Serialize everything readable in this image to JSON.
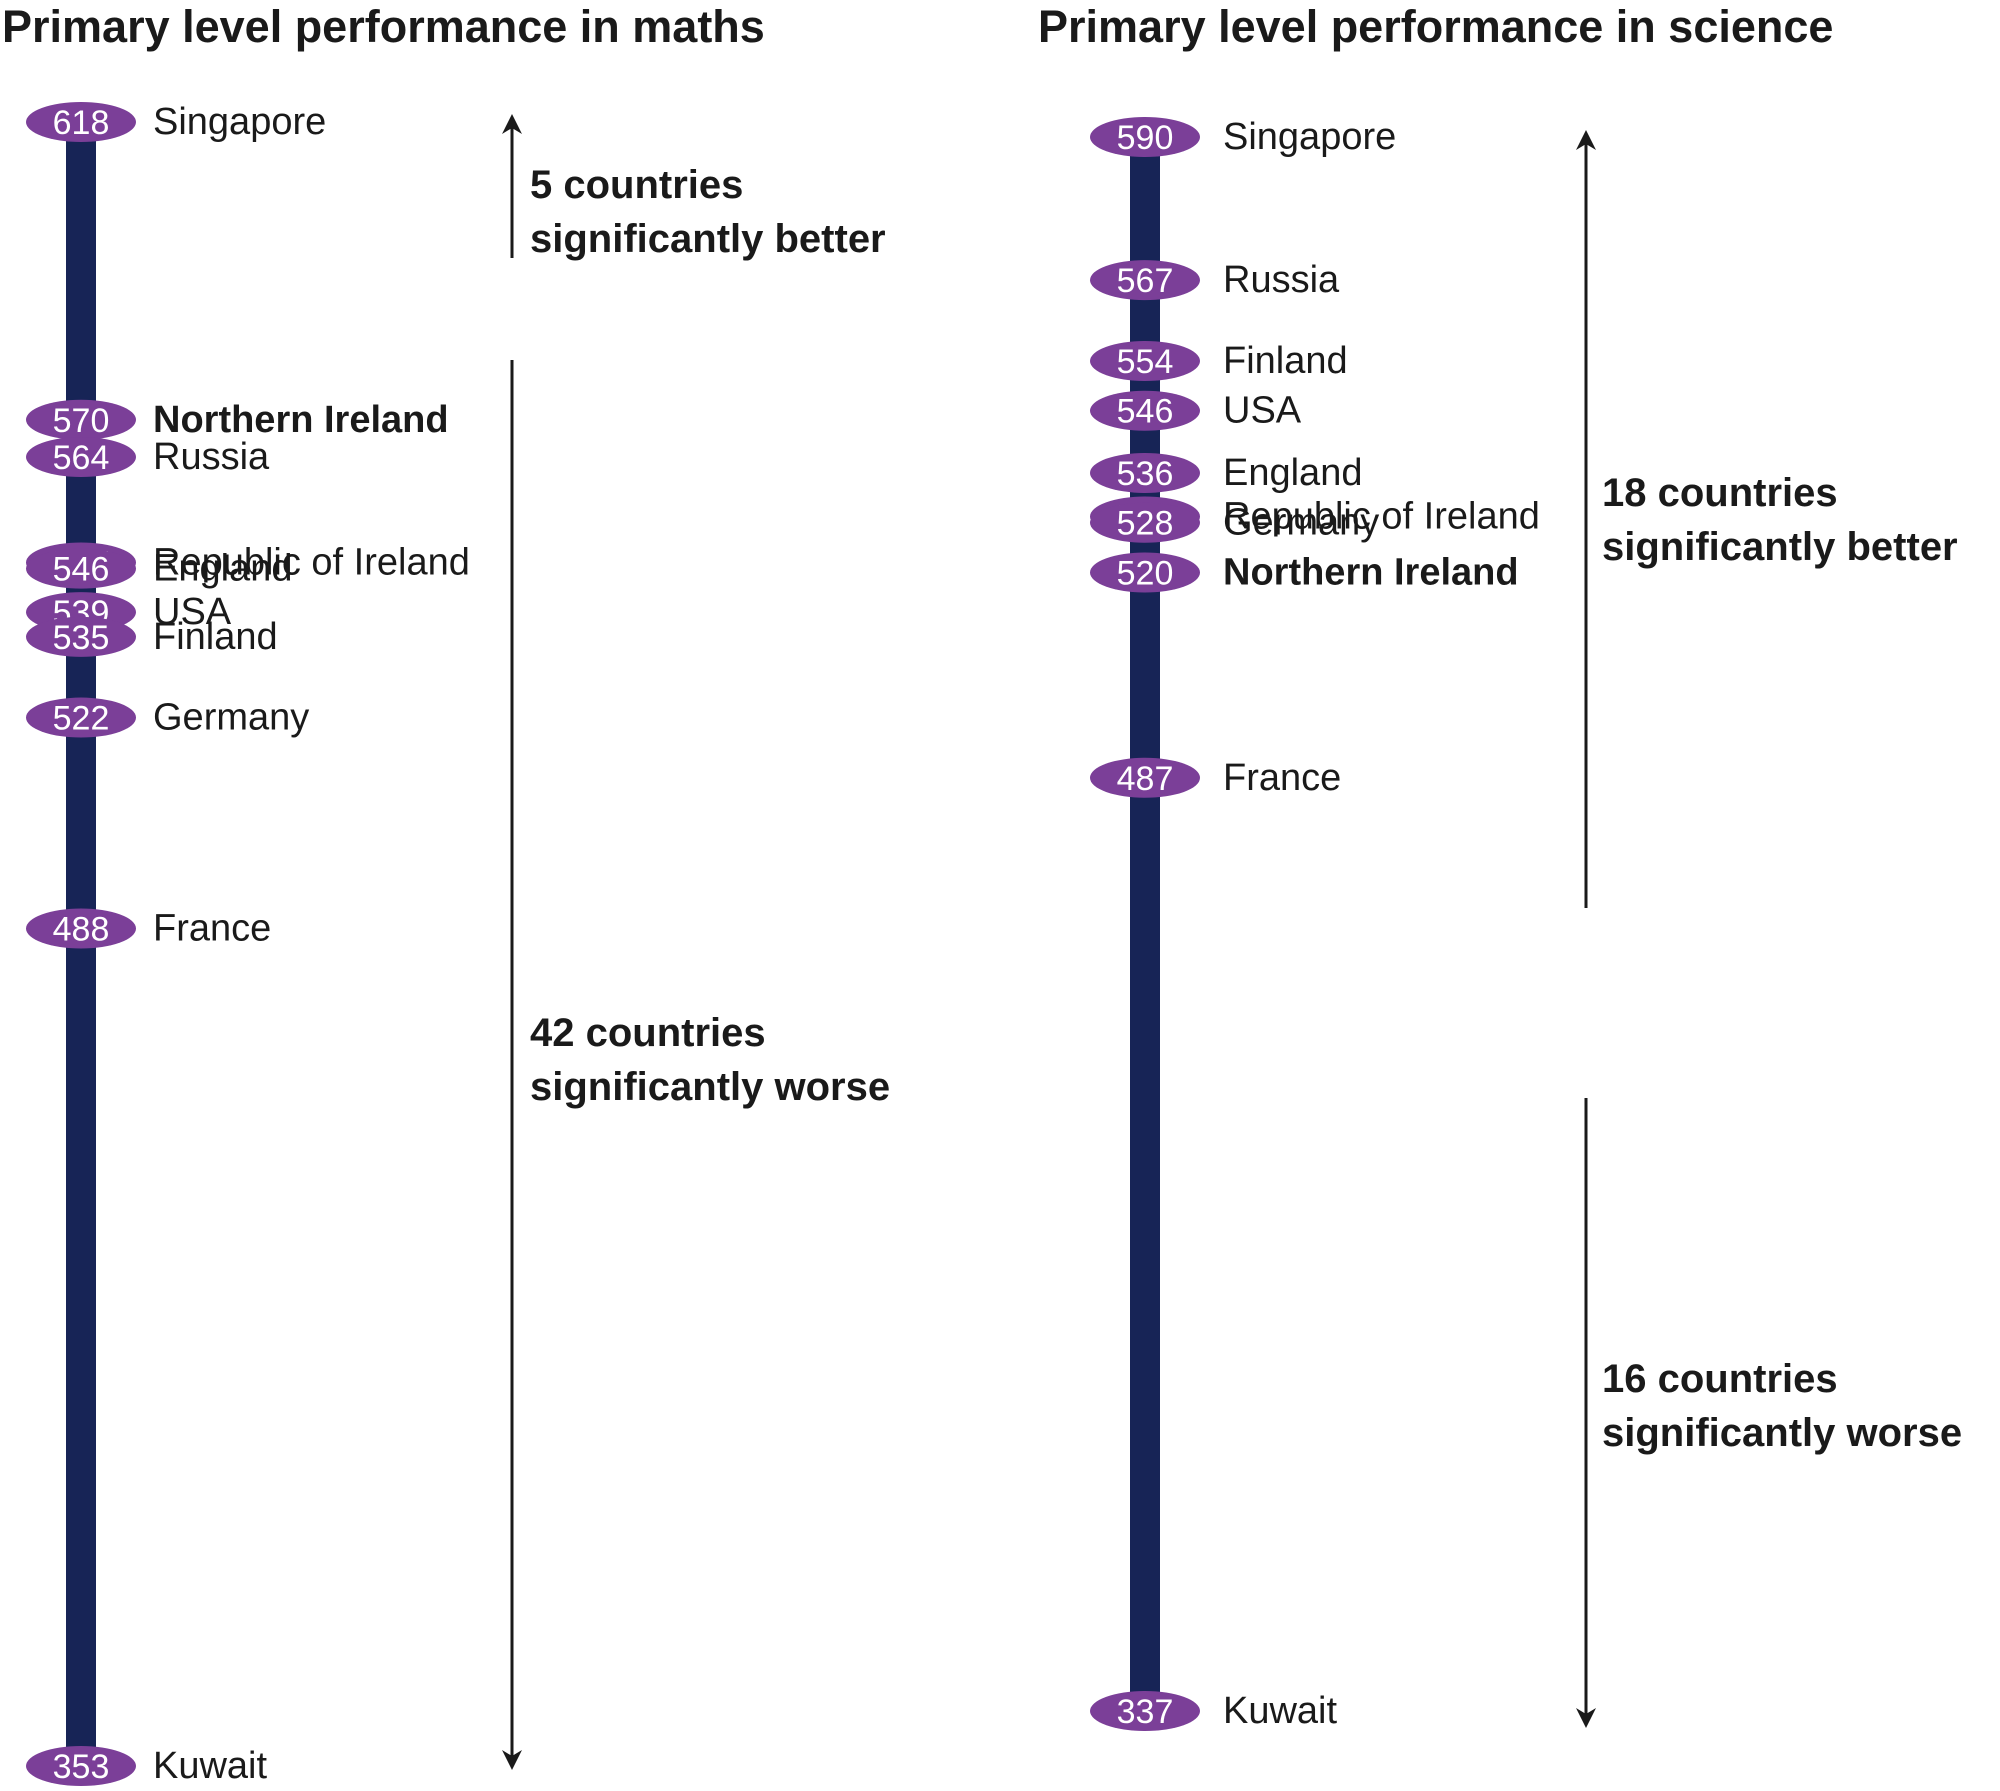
{
  "chart_data": [
    {
      "type": "scale",
      "title": "Primary level performance in maths",
      "highlight": "Northern Ireland",
      "points": [
        {
          "label": "Singapore",
          "value": 618
        },
        {
          "label": "Northern Ireland",
          "value": 570
        },
        {
          "label": "Russia",
          "value": 564
        },
        {
          "label": "Republic of Ireland",
          "value": 547
        },
        {
          "label": "England",
          "value": 546
        },
        {
          "label": "USA",
          "value": 539
        },
        {
          "label": "Finland",
          "value": 535
        },
        {
          "label": "Germany",
          "value": 522
        },
        {
          "label": "France",
          "value": 488
        },
        {
          "label": "Kuwait",
          "value": 353
        }
      ],
      "annotations": [
        {
          "lines": [
            "5 countries",
            "significantly better"
          ]
        },
        {
          "lines": [
            "42 countries",
            "significantly worse"
          ]
        }
      ]
    },
    {
      "type": "scale",
      "title": "Primary level performance in science",
      "highlight": "Northern Ireland",
      "points": [
        {
          "label": "Singapore",
          "value": 590
        },
        {
          "label": "Russia",
          "value": 567
        },
        {
          "label": "Finland",
          "value": 554
        },
        {
          "label": "USA",
          "value": 546
        },
        {
          "label": "England",
          "value": 536
        },
        {
          "label": "Republic of Ireland",
          "value": 529
        },
        {
          "label": "Germany",
          "value": 528
        },
        {
          "label": "Northern Ireland",
          "value": 520
        },
        {
          "label": "France",
          "value": 487
        },
        {
          "label": "Kuwait",
          "value": 337
        }
      ],
      "annotations": [
        {
          "lines": [
            "18 countries",
            "significantly better"
          ]
        },
        {
          "lines": [
            "16 countries",
            "significantly worse"
          ]
        }
      ]
    }
  ],
  "colors": {
    "scale_bar": "#172456",
    "score_marker": "#7b3f98",
    "text": "#1a1a1a",
    "arrow": "#1a1a1a"
  }
}
